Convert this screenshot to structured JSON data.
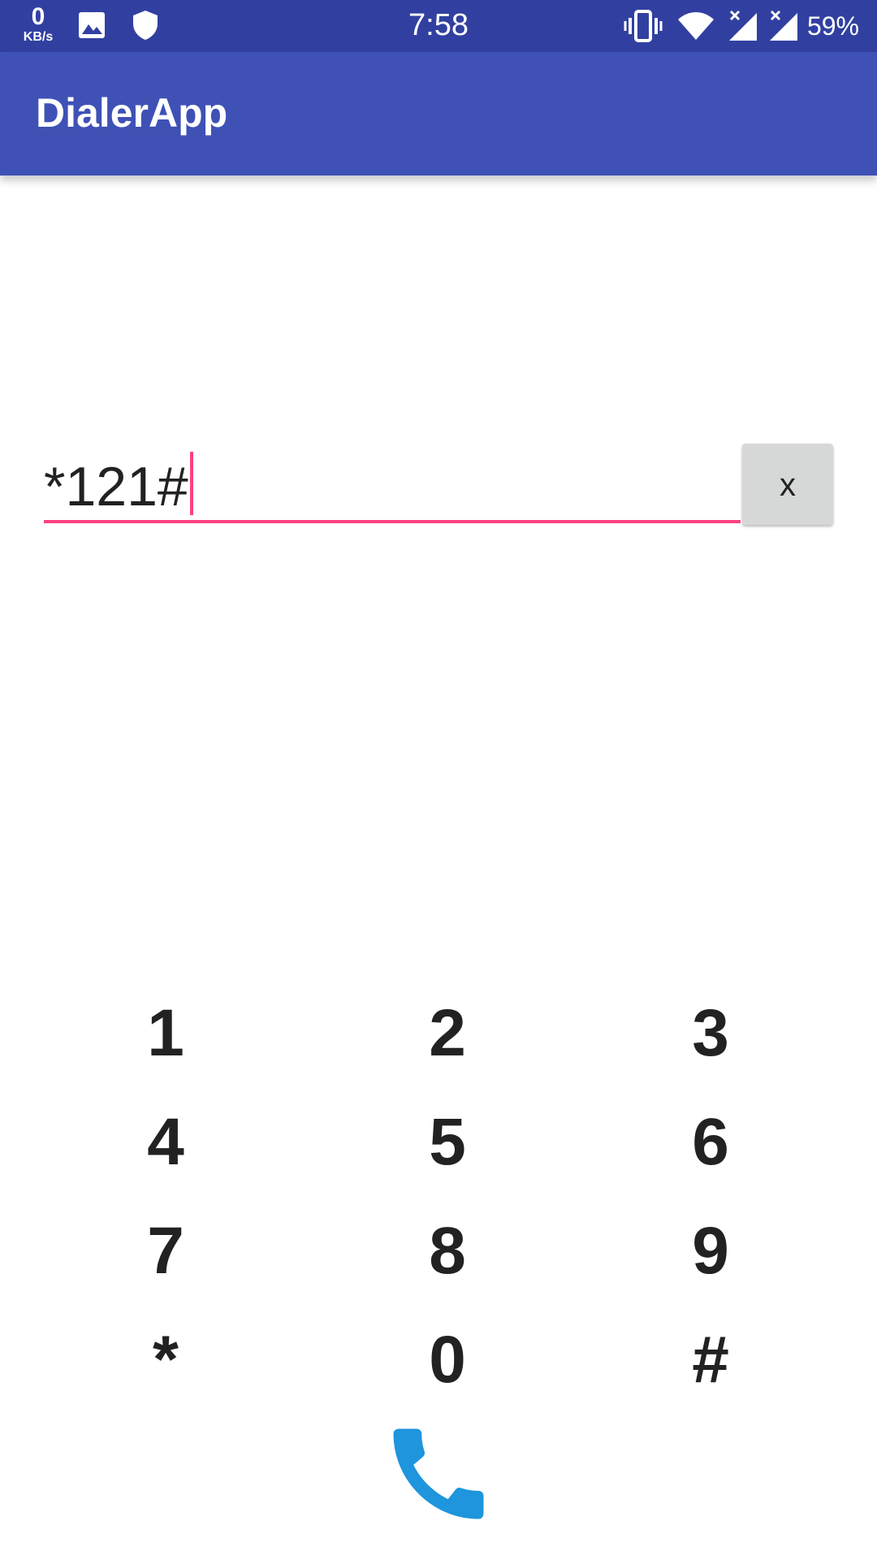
{
  "status_bar": {
    "net_speed_value": "0",
    "net_speed_unit": "KB/s",
    "time": "7:58",
    "battery": "59%",
    "icons": [
      "image-icon",
      "shield-icon",
      "vibrate-icon",
      "wifi-icon",
      "signal-icon",
      "signal-icon"
    ]
  },
  "app_bar": {
    "title": "DialerApp"
  },
  "dialer": {
    "number": "*121#",
    "clear_label": "x"
  },
  "keypad": {
    "keys": [
      "1",
      "2",
      "3",
      "4",
      "5",
      "6",
      "7",
      "8",
      "9",
      "*",
      "0",
      "#"
    ]
  },
  "call": {
    "icon": "phone-icon"
  },
  "colors": {
    "status_bar": "#3140a0",
    "app_bar": "#3f51b5",
    "accent": "#ff4081",
    "call": "#1e95dd"
  }
}
